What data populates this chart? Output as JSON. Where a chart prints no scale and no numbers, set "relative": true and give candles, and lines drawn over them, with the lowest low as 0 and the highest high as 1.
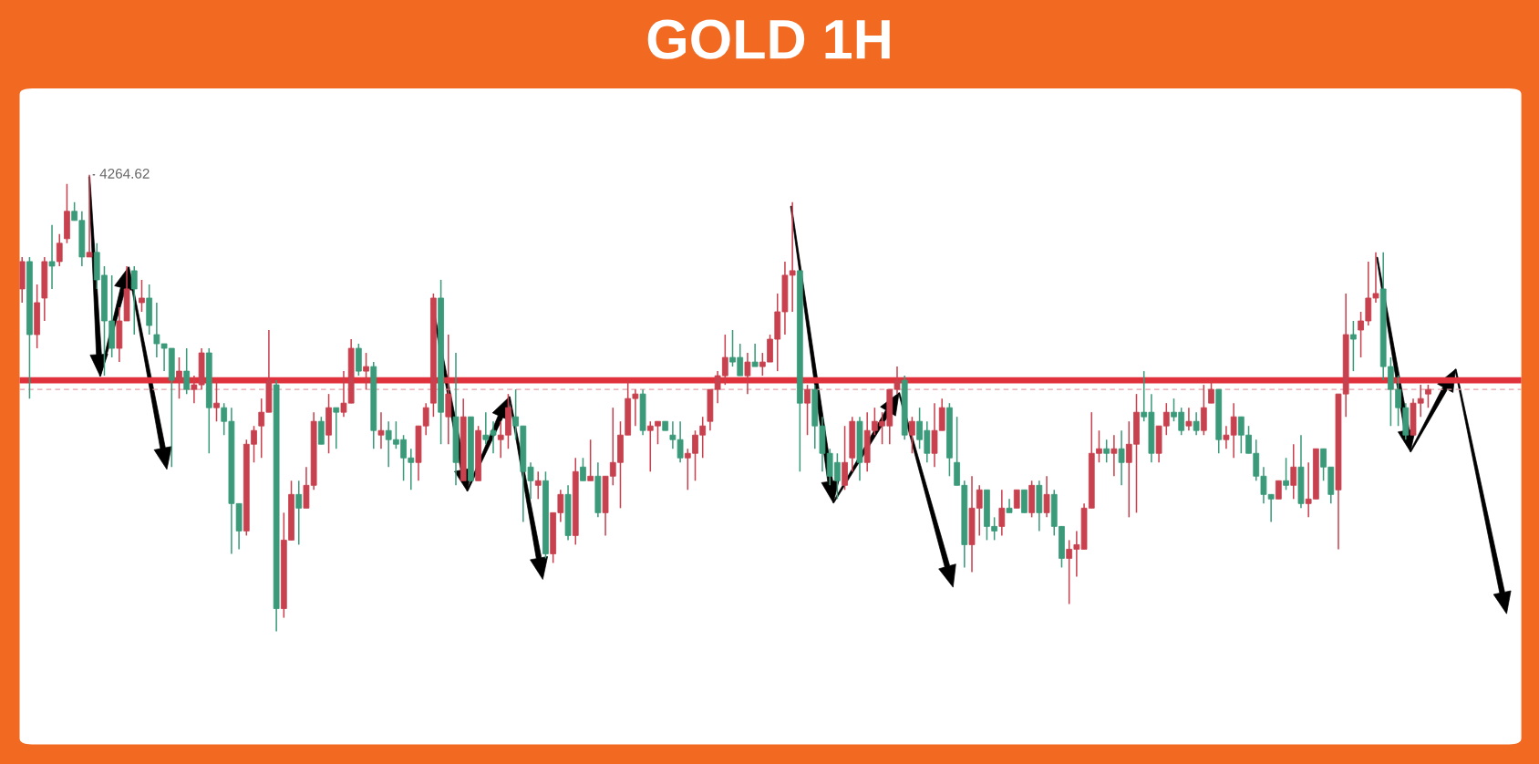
{
  "chart_data": {
    "type": "candlestick",
    "title": "GOLD 1H",
    "relative": true,
    "categories": [
      null,
      null,
      null,
      null,
      null,
      null,
      null,
      null,
      null,
      null,
      null,
      null,
      null,
      null,
      null,
      null,
      null,
      null,
      null,
      null,
      null,
      null,
      null,
      null,
      null,
      null,
      null,
      null,
      null,
      null,
      null,
      null,
      null,
      null,
      null,
      null,
      null,
      null,
      null,
      null,
      null,
      null,
      null,
      null,
      null,
      null,
      null,
      null,
      null,
      null,
      null,
      null,
      null,
      null,
      null,
      null,
      null,
      null,
      null,
      null,
      null,
      null,
      null,
      null,
      null,
      null,
      null,
      null,
      null,
      null,
      null,
      null,
      null,
      null,
      null,
      null,
      null,
      null,
      null,
      null,
      null,
      null,
      null,
      null,
      null,
      null,
      null,
      null,
      null,
      null,
      null,
      null,
      null,
      null,
      null,
      null,
      null,
      null,
      null,
      null,
      null,
      null,
      null,
      null,
      null,
      null,
      null,
      null,
      null,
      null,
      null,
      null,
      null,
      null,
      null,
      null,
      null,
      null,
      null,
      null,
      null,
      null,
      null,
      null,
      null,
      null,
      null,
      null,
      null,
      null,
      null,
      null,
      null,
      null,
      null,
      null,
      null,
      null,
      null,
      null,
      null,
      null,
      null,
      null,
      null,
      null,
      null,
      null,
      null,
      null,
      null,
      null,
      null,
      null,
      null,
      null,
      null,
      null,
      null,
      null,
      null,
      null,
      null,
      null,
      null,
      null,
      null,
      null,
      null,
      null,
      null,
      null,
      null,
      null,
      null,
      null,
      null,
      null,
      null,
      null,
      null,
      null,
      null,
      null,
      null,
      null,
      null,
      null,
      null
    ],
    "colors": [
      "#c8414e",
      "#3a9a7a",
      "#c8414e",
      "#c8414e",
      "#3a9a7a",
      "#c8414e",
      "#c8414e",
      "#3a9a7a",
      "#3a9a7a",
      "#c8414e",
      "#3a9a7a",
      "#3a9a7a",
      "#3a9a7a",
      "#c8414e",
      "#c8414e",
      "#3a9a7a",
      "#c8414e",
      "#3a9a7a",
      "#3a9a7a",
      "#3a9a7a",
      "#3a9a7a",
      "#c8414e",
      "#3a9a7a",
      "#c8414e",
      "#c8414e",
      "#3a9a7a",
      "#c8414e",
      "#3a9a7a",
      "#3a9a7a",
      "#3a9a7a",
      "#c8414e",
      "#c8414e",
      "#c8414e",
      "#c8414e",
      "#3a9a7a",
      "#c8414e",
      "#c8414e",
      "#3a9a7a",
      "#c8414e",
      "#c8414e",
      "#3a9a7a",
      "#c8414e",
      "#3a9a7a",
      "#c8414e",
      "#c8414e",
      "#3a9a7a",
      "#c8414e",
      "#3a9a7a",
      "#c8414e",
      "#3a9a7a",
      "#3a9a7a",
      "#3a9a7a",
      "#3a9a7a",
      "#c8414e",
      "#c8414e",
      "#c8414e",
      "#3a9a7a",
      "#c8414e",
      "#3a9a7a",
      "#c8414e",
      "#3a9a7a",
      "#c8414e",
      "#3a9a7a",
      "#3a9a7a",
      "#c8414e",
      "#c8414e",
      "#3a9a7a",
      "#3a9a7a",
      "#3a9a7a",
      "#c8414e",
      "#3a9a7a",
      "#c8414e",
      "#c8414e",
      "#3a9a7a",
      "#c8414e",
      "#3a9a7a",
      "#c8414e",
      "#3a9a7a",
      "#c8414e",
      "#c8414e",
      "#c8414e",
      "#c8414e",
      "#c8414e",
      "#3a9a7a",
      "#c8414e",
      "#c8414e",
      "#3a9a7a",
      "#3a9a7a",
      "#3a9a7a",
      "#c8414e",
      "#c8414e",
      "#c8414e",
      "#c8414e",
      "#c8414e",
      "#c8414e",
      "#3a9a7a",
      "#3a9a7a",
      "#c8414e",
      "#3a9a7a",
      "#c8414e",
      "#c8414e",
      "#c8414e",
      "#c8414e",
      "#c8414e",
      "#3a9a7a",
      "#c8414e",
      "#3a9a7a",
      "#3a9a7a",
      "#3a9a7a",
      "#3a9a7a",
      "#c8414e",
      "#c8414e",
      "#3a9a7a",
      "#c8414e",
      "#c8414e",
      "#c8414e",
      "#c8414e",
      "#c8414e",
      "#3a9a7a",
      "#c8414e",
      "#3a9a7a",
      "#3a9a7a",
      "#c8414e",
      "#c8414e",
      "#3a9a7a",
      "#3a9a7a",
      "#3a9a7a",
      "#c8414e",
      "#c8414e",
      "#3a9a7a",
      "#3a9a7a",
      "#c8414e",
      "#3a9a7a",
      "#c8414e",
      "#3a9a7a",
      "#c8414e",
      "#3a9a7a",
      "#c8414e",
      "#3a9a7a",
      "#3a9a7a",
      "#c8414e",
      "#c8414e",
      "#c8414e",
      "#c8414e",
      "#c8414e",
      "#3a9a7a",
      "#c8414e",
      "#3a9a7a",
      "#c8414e",
      "#c8414e",
      "#3a9a7a",
      "#3a9a7a",
      "#c8414e",
      "#c8414e",
      "#3a9a7a",
      "#3a9a7a",
      "#c8414e",
      "#3a9a7a",
      "#c8414e",
      "#c8414e",
      "#3a9a7a",
      "#c8414e",
      "#c8414e",
      "#3a9a7a",
      "#3a9a7a",
      "#3a9a7a",
      "#3a9a7a",
      "#3a9a7a",
      "#c8414e",
      "#3a9a7a",
      "#c8414e",
      "#3a9a7a",
      "#c8414e",
      "#c8414e",
      "#3a9a7a",
      "#3a9a7a",
      "#c8414e",
      "#c8414e",
      "#3a9a7a",
      "#c8414e",
      "#c8414e",
      "#c8414e",
      "#3a9a7a",
      "#3a9a7a",
      "#3a9a7a",
      "#3a9a7a",
      "#c8414e",
      "#c8414e",
      "#c8414e"
    ],
    "ohlc": [
      [
        0.75,
        0.82,
        0.72,
        0.81
      ],
      [
        0.81,
        0.82,
        0.51,
        0.65
      ],
      [
        0.65,
        0.76,
        0.62,
        0.72
      ],
      [
        0.73,
        0.82,
        0.68,
        0.81
      ],
      [
        0.81,
        0.89,
        0.75,
        0.8
      ],
      [
        0.81,
        0.87,
        0.8,
        0.85
      ],
      [
        0.86,
        0.98,
        0.85,
        0.92
      ],
      [
        0.92,
        0.94,
        0.9,
        0.9
      ],
      [
        0.9,
        0.92,
        0.8,
        0.82
      ],
      [
        0.82,
        1.0,
        0.82,
        0.83
      ],
      [
        0.83,
        0.85,
        0.75,
        0.77
      ],
      [
        0.78,
        0.8,
        0.56,
        0.68
      ],
      [
        0.68,
        0.78,
        0.6,
        0.62
      ],
      [
        0.62,
        0.71,
        0.59,
        0.68
      ],
      [
        0.68,
        0.8,
        0.68,
        0.75
      ],
      [
        0.79,
        0.8,
        0.65,
        0.75
      ],
      [
        0.72,
        0.77,
        0.7,
        0.73
      ],
      [
        0.73,
        0.76,
        0.65,
        0.67
      ],
      [
        0.65,
        0.72,
        0.6,
        0.63
      ],
      [
        0.63,
        0.63,
        0.57,
        0.62
      ],
      [
        0.62,
        0.62,
        0.36,
        0.55
      ],
      [
        0.55,
        0.6,
        0.51,
        0.57
      ],
      [
        0.57,
        0.62,
        0.52,
        0.53
      ],
      [
        0.53,
        0.56,
        0.5,
        0.54
      ],
      [
        0.54,
        0.62,
        0.53,
        0.61
      ],
      [
        0.61,
        0.62,
        0.39,
        0.49
      ],
      [
        0.49,
        0.55,
        0.46,
        0.5
      ],
      [
        0.49,
        0.5,
        0.43,
        0.46
      ],
      [
        0.46,
        0.49,
        0.17,
        0.28
      ],
      [
        0.28,
        0.28,
        0.18,
        0.22
      ],
      [
        0.22,
        0.42,
        0.21,
        0.41
      ],
      [
        0.41,
        0.45,
        0.37,
        0.44
      ],
      [
        0.45,
        0.51,
        0.38,
        0.48
      ],
      [
        0.48,
        0.66,
        0.48,
        0.55
      ],
      [
        0.54,
        0.55,
        0.0,
        0.05
      ],
      [
        0.05,
        0.26,
        0.03,
        0.2
      ],
      [
        0.2,
        0.33,
        0.2,
        0.3
      ],
      [
        0.3,
        0.33,
        0.19,
        0.27
      ],
      [
        0.27,
        0.36,
        0.27,
        0.32
      ],
      [
        0.32,
        0.48,
        0.31,
        0.46
      ],
      [
        0.46,
        0.47,
        0.41,
        0.41
      ],
      [
        0.43,
        0.52,
        0.39,
        0.49
      ],
      [
        0.49,
        0.49,
        0.4,
        0.48
      ],
      [
        0.48,
        0.57,
        0.47,
        0.5
      ],
      [
        0.5,
        0.64,
        0.5,
        0.62
      ],
      [
        0.62,
        0.63,
        0.56,
        0.57
      ],
      [
        0.57,
        0.61,
        0.53,
        0.58
      ],
      [
        0.58,
        0.59,
        0.4,
        0.44
      ],
      [
        0.43,
        0.48,
        0.4,
        0.44
      ],
      [
        0.44,
        0.46,
        0.36,
        0.42
      ],
      [
        0.42,
        0.46,
        0.4,
        0.41
      ],
      [
        0.42,
        0.43,
        0.33,
        0.38
      ],
      [
        0.38,
        0.4,
        0.31,
        0.37
      ],
      [
        0.37,
        0.45,
        0.33,
        0.45
      ],
      [
        0.45,
        0.5,
        0.43,
        0.49
      ],
      [
        0.5,
        0.74,
        0.47,
        0.73
      ],
      [
        0.73,
        0.77,
        0.41,
        0.48
      ],
      [
        0.47,
        0.65,
        0.41,
        0.52
      ],
      [
        0.47,
        0.61,
        0.32,
        0.37
      ],
      [
        0.33,
        0.51,
        0.33,
        0.47
      ],
      [
        0.47,
        0.47,
        0.33,
        0.33
      ],
      [
        0.33,
        0.45,
        0.33,
        0.44
      ],
      [
        0.43,
        0.48,
        0.41,
        0.42
      ],
      [
        0.44,
        0.46,
        0.39,
        0.43
      ],
      [
        0.42,
        0.46,
        0.38,
        0.43
      ],
      [
        0.43,
        0.52,
        0.4,
        0.49
      ],
      [
        0.47,
        0.53,
        0.42,
        0.45
      ],
      [
        0.45,
        0.45,
        0.24,
        0.35
      ],
      [
        0.36,
        0.37,
        0.29,
        0.33
      ],
      [
        0.32,
        0.35,
        0.29,
        0.33
      ],
      [
        0.33,
        0.35,
        0.16,
        0.17
      ],
      [
        0.17,
        0.26,
        0.15,
        0.26
      ],
      [
        0.26,
        0.31,
        0.24,
        0.3
      ],
      [
        0.3,
        0.32,
        0.2,
        0.21
      ],
      [
        0.21,
        0.38,
        0.19,
        0.35
      ],
      [
        0.36,
        0.38,
        0.33,
        0.33
      ],
      [
        0.33,
        0.42,
        0.33,
        0.34
      ],
      [
        0.34,
        0.37,
        0.25,
        0.26
      ],
      [
        0.26,
        0.34,
        0.21,
        0.34
      ],
      [
        0.34,
        0.49,
        0.32,
        0.37
      ],
      [
        0.37,
        0.46,
        0.27,
        0.43
      ],
      [
        0.43,
        0.55,
        0.43,
        0.51
      ],
      [
        0.51,
        0.53,
        0.45,
        0.52
      ],
      [
        0.52,
        0.53,
        0.43,
        0.44
      ],
      [
        0.44,
        0.46,
        0.35,
        0.45
      ],
      [
        0.45,
        0.46,
        0.41,
        0.46
      ],
      [
        0.46,
        0.46,
        0.44,
        0.44
      ],
      [
        0.43,
        0.46,
        0.4,
        0.42
      ],
      [
        0.42,
        0.46,
        0.37,
        0.38
      ],
      [
        0.38,
        0.4,
        0.31,
        0.39
      ],
      [
        0.39,
        0.44,
        0.33,
        0.43
      ],
      [
        0.43,
        0.47,
        0.38,
        0.45
      ],
      [
        0.46,
        0.53,
        0.44,
        0.53
      ],
      [
        0.53,
        0.57,
        0.5,
        0.56
      ],
      [
        0.56,
        0.65,
        0.54,
        0.6
      ],
      [
        0.6,
        0.66,
        0.58,
        0.59
      ],
      [
        0.6,
        0.63,
        0.56,
        0.56
      ],
      [
        0.56,
        0.61,
        0.52,
        0.59
      ],
      [
        0.59,
        0.63,
        0.58,
        0.58
      ],
      [
        0.58,
        0.61,
        0.56,
        0.59
      ],
      [
        0.59,
        0.65,
        0.59,
        0.64
      ],
      [
        0.64,
        0.74,
        0.57,
        0.7
      ],
      [
        0.7,
        0.81,
        0.65,
        0.78
      ],
      [
        0.78,
        0.94,
        0.7,
        0.79
      ],
      [
        0.79,
        0.79,
        0.35,
        0.5
      ],
      [
        0.5,
        0.54,
        0.43,
        0.53
      ],
      [
        0.53,
        0.54,
        0.4,
        0.45
      ],
      [
        0.45,
        0.47,
        0.35,
        0.39
      ],
      [
        0.39,
        0.4,
        0.32,
        0.34
      ],
      [
        0.37,
        0.39,
        0.29,
        0.33
      ],
      [
        0.32,
        0.45,
        0.31,
        0.37
      ],
      [
        0.38,
        0.47,
        0.35,
        0.46
      ],
      [
        0.46,
        0.47,
        0.33,
        0.37
      ],
      [
        0.37,
        0.48,
        0.35,
        0.44
      ],
      [
        0.44,
        0.49,
        0.43,
        0.46
      ],
      [
        0.45,
        0.48,
        0.41,
        0.46
      ],
      [
        0.45,
        0.53,
        0.41,
        0.53
      ],
      [
        0.53,
        0.58,
        0.52,
        0.55
      ],
      [
        0.55,
        0.56,
        0.42,
        0.43
      ],
      [
        0.43,
        0.47,
        0.39,
        0.46
      ],
      [
        0.46,
        0.49,
        0.4,
        0.42
      ],
      [
        0.44,
        0.46,
        0.37,
        0.39
      ],
      [
        0.39,
        0.5,
        0.36,
        0.44
      ],
      [
        0.44,
        0.51,
        0.44,
        0.49
      ],
      [
        0.49,
        0.5,
        0.34,
        0.38
      ],
      [
        0.37,
        0.47,
        0.32,
        0.32
      ],
      [
        0.32,
        0.33,
        0.14,
        0.19
      ],
      [
        0.19,
        0.34,
        0.13,
        0.27
      ],
      [
        0.27,
        0.32,
        0.21,
        0.31
      ],
      [
        0.31,
        0.31,
        0.2,
        0.23
      ],
      [
        0.23,
        0.25,
        0.2,
        0.22
      ],
      [
        0.23,
        0.31,
        0.21,
        0.27
      ],
      [
        0.27,
        0.29,
        0.26,
        0.26
      ],
      [
        0.27,
        0.31,
        0.27,
        0.31
      ],
      [
        0.31,
        0.31,
        0.26,
        0.26
      ],
      [
        0.26,
        0.33,
        0.25,
        0.32
      ],
      [
        0.32,
        0.33,
        0.22,
        0.26
      ],
      [
        0.26,
        0.34,
        0.25,
        0.3
      ],
      [
        0.3,
        0.31,
        0.21,
        0.23
      ],
      [
        0.23,
        0.23,
        0.14,
        0.16
      ],
      [
        0.16,
        0.2,
        0.06,
        0.18
      ],
      [
        0.18,
        0.22,
        0.12,
        0.19
      ],
      [
        0.18,
        0.28,
        0.18,
        0.27
      ],
      [
        0.27,
        0.48,
        0.27,
        0.39
      ],
      [
        0.39,
        0.44,
        0.37,
        0.4
      ],
      [
        0.4,
        0.42,
        0.37,
        0.39
      ],
      [
        0.39,
        0.43,
        0.34,
        0.4
      ],
      [
        0.4,
        0.44,
        0.32,
        0.37
      ],
      [
        0.37,
        0.46,
        0.25,
        0.41
      ],
      [
        0.41,
        0.52,
        0.26,
        0.48
      ],
      [
        0.48,
        0.57,
        0.46,
        0.47
      ],
      [
        0.48,
        0.52,
        0.37,
        0.39
      ],
      [
        0.39,
        0.45,
        0.37,
        0.45
      ],
      [
        0.45,
        0.5,
        0.43,
        0.48
      ],
      [
        0.48,
        0.51,
        0.46,
        0.47
      ],
      [
        0.48,
        0.49,
        0.43,
        0.44
      ],
      [
        0.45,
        0.49,
        0.44,
        0.46
      ],
      [
        0.46,
        0.48,
        0.43,
        0.44
      ],
      [
        0.44,
        0.54,
        0.43,
        0.49
      ],
      [
        0.5,
        0.55,
        0.5,
        0.53
      ],
      [
        0.53,
        0.53,
        0.39,
        0.42
      ],
      [
        0.42,
        0.45,
        0.4,
        0.43
      ],
      [
        0.43,
        0.5,
        0.38,
        0.47
      ],
      [
        0.47,
        0.47,
        0.39,
        0.43
      ],
      [
        0.43,
        0.45,
        0.39,
        0.39
      ],
      [
        0.39,
        0.42,
        0.33,
        0.34
      ],
      [
        0.34,
        0.36,
        0.28,
        0.3
      ],
      [
        0.3,
        0.3,
        0.24,
        0.29
      ],
      [
        0.29,
        0.33,
        0.29,
        0.33
      ],
      [
        0.33,
        0.38,
        0.31,
        0.32
      ],
      [
        0.32,
        0.41,
        0.29,
        0.36
      ],
      [
        0.36,
        0.43,
        0.27,
        0.28
      ],
      [
        0.28,
        0.37,
        0.25,
        0.29
      ],
      [
        0.29,
        0.4,
        0.29,
        0.4
      ],
      [
        0.4,
        0.4,
        0.33,
        0.36
      ],
      [
        0.36,
        0.36,
        0.28,
        0.3
      ],
      [
        0.31,
        0.52,
        0.18,
        0.52
      ],
      [
        0.52,
        0.74,
        0.47,
        0.65
      ],
      [
        0.65,
        0.68,
        0.57,
        0.64
      ],
      [
        0.66,
        0.7,
        0.6,
        0.68
      ],
      [
        0.68,
        0.81,
        0.67,
        0.73
      ],
      [
        0.73,
        0.83,
        0.72,
        0.74
      ],
      [
        0.75,
        0.83,
        0.55,
        0.58
      ],
      [
        0.58,
        0.6,
        0.45,
        0.53
      ],
      [
        0.53,
        0.56,
        0.45,
        0.49
      ],
      [
        0.49,
        0.5,
        0.42,
        0.43
      ],
      [
        0.43,
        0.51,
        0.43,
        0.5
      ],
      [
        0.5,
        0.54,
        0.47,
        0.51
      ],
      [
        0.52,
        0.54,
        0.49,
        0.53
      ]
    ],
    "ref_lines": [
      {
        "axis": "y",
        "value": 0.55,
        "color": "#e0323c",
        "line_style": "solid"
      },
      {
        "axis": "y",
        "value": 0.53,
        "color": "#e8a0aa",
        "line_style": "dashed"
      }
    ],
    "annotations": [
      "4264.62"
    ]
  }
}
